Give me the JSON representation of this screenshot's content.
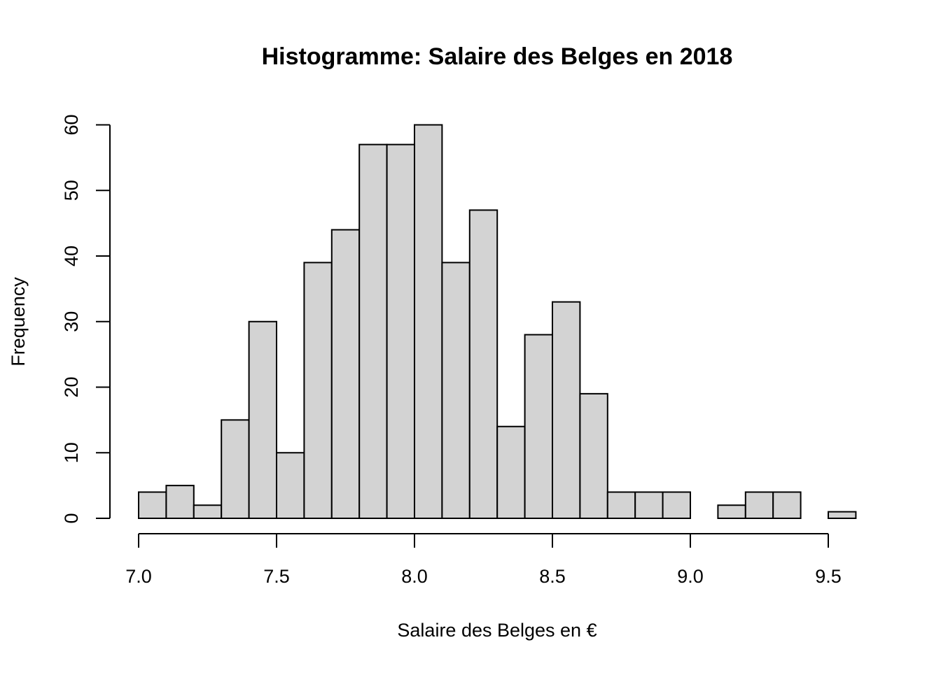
{
  "chart_data": {
    "type": "bar",
    "title": "Histogramme: Salaire des Belges en 2018",
    "xlabel": "Salaire des Belges en €",
    "ylabel": "Frequency",
    "xlim": [
      7.0,
      9.6
    ],
    "ylim": [
      0,
      60
    ],
    "x_ticks": [
      "7.0",
      "7.5",
      "8.0",
      "8.5",
      "9.0",
      "9.5"
    ],
    "y_ticks": [
      "0",
      "10",
      "20",
      "30",
      "40",
      "50",
      "60"
    ],
    "bin_width": 0.1,
    "bins": [
      {
        "start": 7.0,
        "end": 7.1,
        "count": 4
      },
      {
        "start": 7.1,
        "end": 7.2,
        "count": 5
      },
      {
        "start": 7.2,
        "end": 7.3,
        "count": 2
      },
      {
        "start": 7.3,
        "end": 7.4,
        "count": 15
      },
      {
        "start": 7.4,
        "end": 7.5,
        "count": 30
      },
      {
        "start": 7.5,
        "end": 7.6,
        "count": 10
      },
      {
        "start": 7.6,
        "end": 7.7,
        "count": 39
      },
      {
        "start": 7.7,
        "end": 7.8,
        "count": 44
      },
      {
        "start": 7.8,
        "end": 7.9,
        "count": 57
      },
      {
        "start": 7.9,
        "end": 8.0,
        "count": 57
      },
      {
        "start": 8.0,
        "end": 8.1,
        "count": 60
      },
      {
        "start": 8.1,
        "end": 8.2,
        "count": 39
      },
      {
        "start": 8.2,
        "end": 8.3,
        "count": 47
      },
      {
        "start": 8.3,
        "end": 8.4,
        "count": 14
      },
      {
        "start": 8.4,
        "end": 8.5,
        "count": 28
      },
      {
        "start": 8.5,
        "end": 8.6,
        "count": 33
      },
      {
        "start": 8.6,
        "end": 8.7,
        "count": 19
      },
      {
        "start": 8.7,
        "end": 8.8,
        "count": 4
      },
      {
        "start": 8.8,
        "end": 8.9,
        "count": 4
      },
      {
        "start": 8.9,
        "end": 9.0,
        "count": 4
      },
      {
        "start": 9.0,
        "end": 9.1,
        "count": 0
      },
      {
        "start": 9.1,
        "end": 9.2,
        "count": 2
      },
      {
        "start": 9.2,
        "end": 9.3,
        "count": 4
      },
      {
        "start": 9.3,
        "end": 9.4,
        "count": 4
      },
      {
        "start": 9.4,
        "end": 9.5,
        "count": 0
      },
      {
        "start": 9.5,
        "end": 9.6,
        "count": 1
      }
    ],
    "grid": false,
    "bar_color": "#d3d3d3",
    "edge_color": "#000000"
  }
}
